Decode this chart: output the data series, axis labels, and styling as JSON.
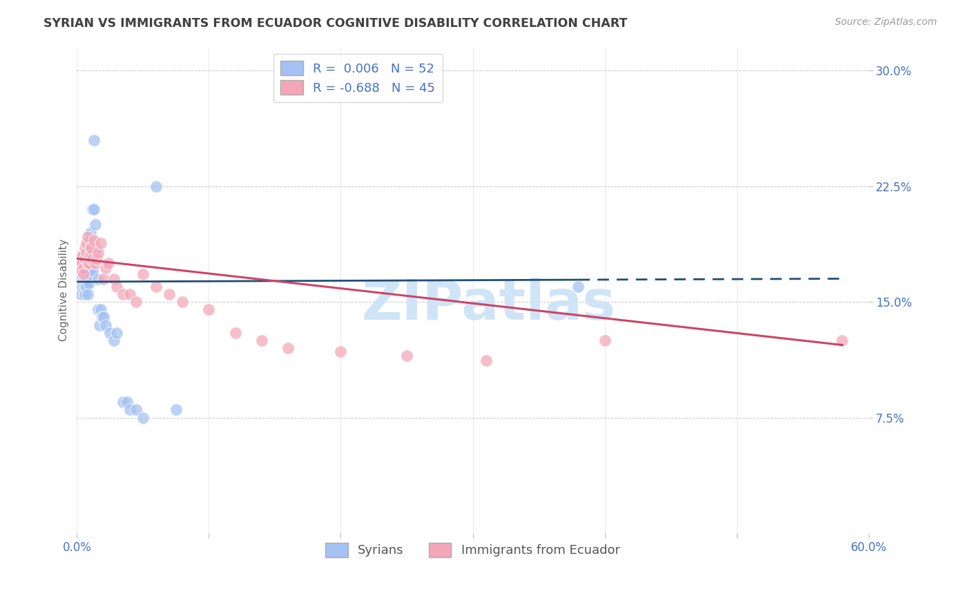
{
  "title": "SYRIAN VS IMMIGRANTS FROM ECUADOR COGNITIVE DISABILITY CORRELATION CHART",
  "source": "Source: ZipAtlas.com",
  "ylabel": "Cognitive Disability",
  "watermark": "ZIPatlas",
  "background_color": "#ffffff",
  "grid_color": "#c8c8c8",
  "xlim": [
    0.0,
    0.6
  ],
  "ylim": [
    0.0,
    0.315
  ],
  "xticks": [
    0.0,
    0.1,
    0.2,
    0.3,
    0.4,
    0.5,
    0.6
  ],
  "xticklabels": [
    "0.0%",
    "",
    "",
    "",
    "",
    "",
    "60.0%"
  ],
  "yticks_right": [
    0.075,
    0.15,
    0.225,
    0.3
  ],
  "yticklabels_right": [
    "7.5%",
    "15.0%",
    "22.5%",
    "30.0%"
  ],
  "legend_color1": "#a4c2f4",
  "legend_color2": "#f4a7b9",
  "scatter_color1": "#a4c2f4",
  "scatter_color2": "#f4a7b9",
  "line_color1": "#1f4e79",
  "line_color2": "#cc4466",
  "title_color": "#404040",
  "tick_color": "#4472c4",
  "watermark_color": "#d0e4f7",
  "syrians_x": [
    0.002,
    0.003,
    0.003,
    0.004,
    0.004,
    0.004,
    0.005,
    0.005,
    0.005,
    0.005,
    0.006,
    0.006,
    0.006,
    0.006,
    0.007,
    0.007,
    0.007,
    0.007,
    0.008,
    0.008,
    0.008,
    0.009,
    0.009,
    0.01,
    0.01,
    0.01,
    0.011,
    0.011,
    0.012,
    0.012,
    0.013,
    0.013,
    0.014,
    0.015,
    0.016,
    0.016,
    0.017,
    0.018,
    0.019,
    0.02,
    0.022,
    0.025,
    0.028,
    0.03,
    0.035,
    0.038,
    0.04,
    0.045,
    0.05,
    0.06,
    0.075,
    0.38
  ],
  "syrians_y": [
    0.17,
    0.155,
    0.165,
    0.17,
    0.16,
    0.175,
    0.172,
    0.168,
    0.165,
    0.18,
    0.175,
    0.165,
    0.16,
    0.155,
    0.178,
    0.17,
    0.165,
    0.16,
    0.175,
    0.168,
    0.155,
    0.17,
    0.162,
    0.19,
    0.185,
    0.195,
    0.175,
    0.168,
    0.17,
    0.21,
    0.255,
    0.21,
    0.2,
    0.185,
    0.165,
    0.145,
    0.135,
    0.145,
    0.14,
    0.14,
    0.135,
    0.13,
    0.125,
    0.13,
    0.085,
    0.085,
    0.08,
    0.08,
    0.075,
    0.225,
    0.08,
    0.16
  ],
  "ecuador_x": [
    0.002,
    0.003,
    0.004,
    0.004,
    0.005,
    0.005,
    0.006,
    0.006,
    0.007,
    0.007,
    0.008,
    0.008,
    0.009,
    0.009,
    0.01,
    0.01,
    0.011,
    0.011,
    0.012,
    0.013,
    0.014,
    0.015,
    0.016,
    0.018,
    0.02,
    0.022,
    0.024,
    0.028,
    0.03,
    0.035,
    0.04,
    0.045,
    0.05,
    0.06,
    0.07,
    0.08,
    0.1,
    0.12,
    0.14,
    0.16,
    0.2,
    0.25,
    0.31,
    0.4,
    0.58
  ],
  "ecuador_y": [
    0.175,
    0.17,
    0.18,
    0.175,
    0.172,
    0.168,
    0.185,
    0.178,
    0.182,
    0.188,
    0.175,
    0.192,
    0.18,
    0.175,
    0.185,
    0.178,
    0.18,
    0.185,
    0.178,
    0.19,
    0.175,
    0.178,
    0.182,
    0.188,
    0.165,
    0.172,
    0.175,
    0.165,
    0.16,
    0.155,
    0.155,
    0.15,
    0.168,
    0.16,
    0.155,
    0.15,
    0.145,
    0.13,
    0.125,
    0.12,
    0.118,
    0.115,
    0.112,
    0.125,
    0.125
  ],
  "line1_x_solid_end": 0.38,
  "line1_x_dash_start": 0.38,
  "line1_x_dash_end": 0.58,
  "line1_y_start": 0.163,
  "line1_y_end": 0.165,
  "line2_x_start": 0.0,
  "line2_x_end": 0.58,
  "line2_y_start": 0.178,
  "line2_y_end": 0.122
}
